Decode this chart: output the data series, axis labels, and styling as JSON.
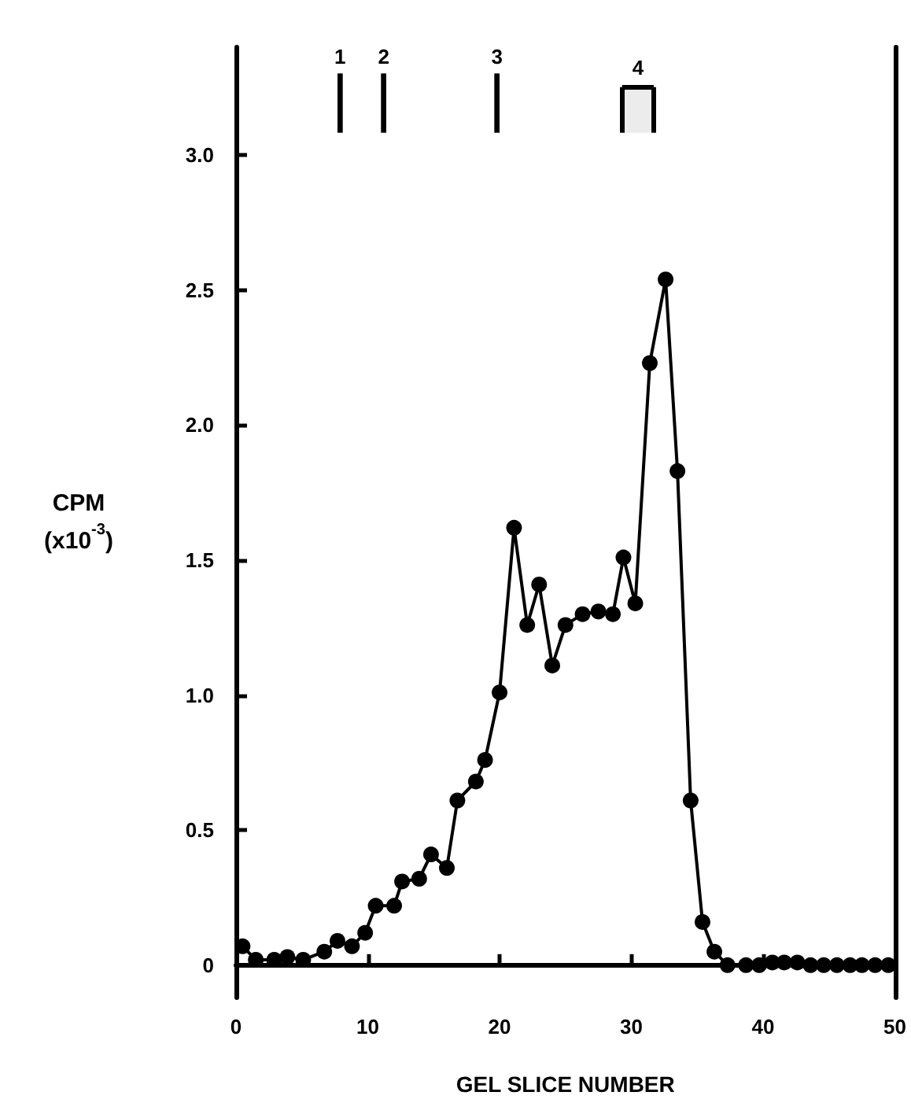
{
  "chart_data": {
    "type": "line",
    "xlabel": "GEL SLICE NUMBER",
    "ylabel": "CPM\n(x10$^{-3}$)",
    "x": [
      0.5,
      1.5,
      2.9,
      3.9,
      5.1,
      6.7,
      7.7,
      8.8,
      9.8,
      10.6,
      12,
      12.6,
      13.9,
      14.8,
      16,
      16.8,
      18.2,
      18.9,
      20,
      21.1,
      22.1,
      23,
      24,
      25,
      26.3,
      27.5,
      28.6,
      29.4,
      30.3,
      31.4,
      32.6,
      33.5,
      34.5,
      35.4,
      36.3,
      37.3,
      38.7,
      39.7,
      40.7,
      41.6,
      42.6,
      43.6,
      44.6,
      45.6,
      46.6,
      47.5,
      48.5,
      49.5
    ],
    "series": [
      {
        "color": "#000000",
        "values": [
          0.07,
          0.02,
          0.02,
          0.03,
          0.02,
          0.05,
          0.09,
          0.07,
          0.12,
          0.22,
          0.22,
          0.31,
          0.32,
          0.41,
          0.36,
          0.61,
          0.68,
          0.76,
          1.01,
          1.62,
          1.26,
          1.41,
          1.11,
          1.26,
          1.3,
          1.31,
          1.3,
          1.51,
          1.34,
          2.23,
          2.54,
          1.83,
          0.61,
          0.16,
          0.05,
          0.0,
          0.0,
          0.0,
          0.01,
          0.01,
          0.01,
          0.0,
          0.0,
          0.0,
          0.0,
          0.0,
          0.0,
          0.0
        ]
      }
    ],
    "xlim": [
      0,
      50
    ],
    "xticks": [
      0,
      10,
      20,
      30,
      40,
      50
    ],
    "ylim": [
      -0.12,
      3.4
    ],
    "yticks": [
      0,
      {
        "value": 0.5,
        "label": "0.5"
      },
      {
        "value": 1,
        "label": "1.0"
      },
      {
        "value": 1.5,
        "label": "1.5"
      },
      {
        "value": 2,
        "label": "2.0"
      },
      {
        "value": 2.5,
        "label": "2.5"
      },
      {
        "value": 3,
        "label": "3.0"
      }
    ],
    "bands": [
      {
        "axis": "x",
        "from": 7.7,
        "to": 8.1,
        "label": "1",
        "color": "#000000"
      },
      {
        "axis": "x",
        "from": 11.0,
        "to": 11.4,
        "label": "2",
        "color": "#000000"
      },
      {
        "axis": "x",
        "from": 19.6,
        "to": 20.0,
        "label": "3",
        "color": "#000000"
      },
      {
        "axis": "x",
        "from": 29.3,
        "to": 31.7,
        "label": "4"
      }
    ],
    "grid": false,
    "marker": "circle",
    "line_style": "solid"
  }
}
